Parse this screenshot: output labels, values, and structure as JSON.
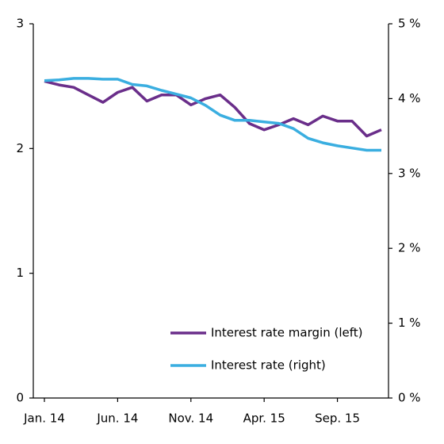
{
  "chart_data": {
    "type": "line",
    "categories": [
      "Jan. 14",
      null,
      null,
      null,
      null,
      "Jun. 14",
      null,
      null,
      null,
      null,
      "Nov. 14",
      null,
      null,
      null,
      null,
      "Apr. 15",
      null,
      null,
      null,
      null,
      "Sep. 15",
      null,
      null,
      null
    ],
    "series": [
      {
        "name": "Interest rate margin (left)",
        "color": "#6a2e8a",
        "values": [
          2.54,
          2.51,
          2.49,
          2.43,
          2.37,
          2.45,
          2.49,
          2.38,
          2.43,
          2.43,
          2.35,
          2.4,
          2.43,
          2.33,
          2.2,
          2.15,
          2.19,
          2.24,
          2.19,
          2.26,
          2.22,
          2.22,
          2.1,
          2.15
        ]
      },
      {
        "name": "Interest rate (right)",
        "color": "#3aaee0",
        "axis": "y2",
        "values": [
          4.24,
          4.25,
          4.27,
          4.27,
          4.26,
          4.26,
          4.19,
          4.17,
          4.11,
          4.06,
          4.01,
          3.91,
          3.78,
          3.71,
          3.71,
          3.69,
          3.67,
          3.6,
          3.47,
          3.41,
          3.37,
          3.34,
          3.31,
          3.31
        ]
      }
    ],
    "ylim": [
      0,
      3
    ],
    "yticks": [
      0,
      1,
      2,
      3
    ],
    "y2lim": [
      0,
      5
    ],
    "y2ticks": [
      {
        "value": 0,
        "label": "0 %"
      },
      {
        "value": 1,
        "label": "1 %"
      },
      {
        "value": 2,
        "label": "2 %"
      },
      {
        "value": 3,
        "label": "3 %"
      },
      {
        "value": 4,
        "label": "4 %"
      },
      {
        "value": 5,
        "label": "5 %"
      }
    ],
    "legend": "lower right"
  }
}
